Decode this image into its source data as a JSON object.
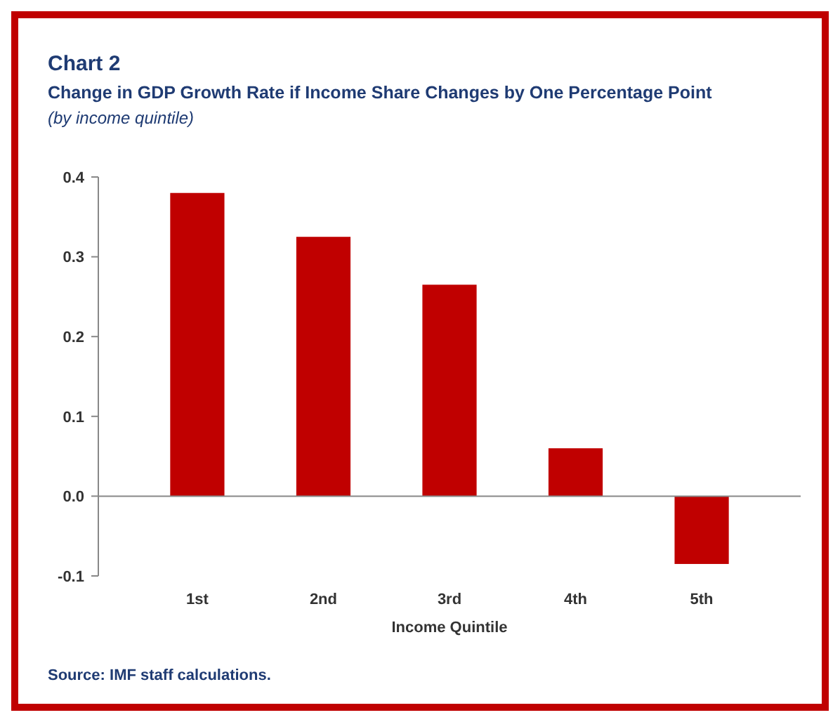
{
  "chart_data": {
    "type": "bar",
    "title": "Chart 2",
    "subtitle": "Change in GDP Growth Rate if Income Share Changes by One Percentage Point",
    "xlabel": "Income Quintile",
    "annotations": [
      "(by income quintile)",
      "Source: IMF staff calculations."
    ],
    "categories": [
      "1st",
      "2nd",
      "3rd",
      "4th",
      "5th"
    ],
    "values": [
      0.38,
      0.325,
      0.265,
      0.06,
      -0.085
    ],
    "color": "#c00000",
    "ylim": [
      -0.1,
      0.4
    ],
    "yticks": [
      {
        "value": -0.1,
        "label": "-0.1"
      },
      {
        "value": 0,
        "label": "0.0"
      },
      0.1,
      0.2,
      0.3,
      0.4
    ]
  }
}
